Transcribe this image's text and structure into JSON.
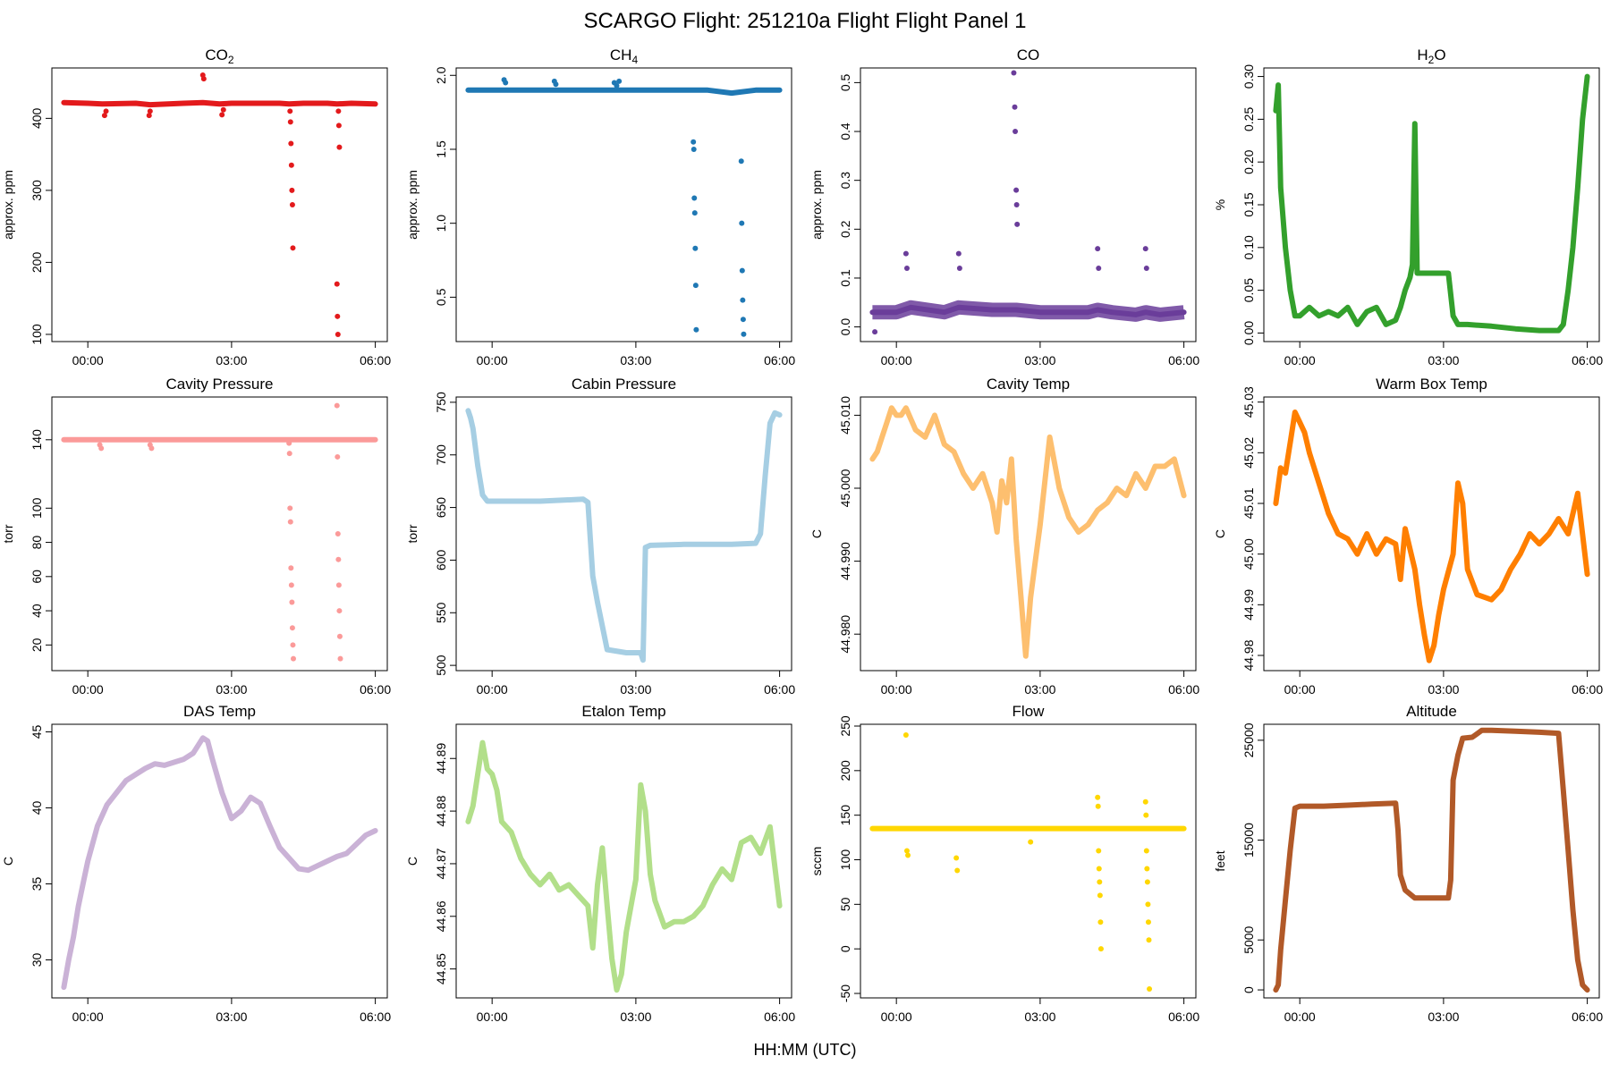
{
  "figure": {
    "title": "SCARGO Flight: 251210a  Flight Flight  Panel 1",
    "xlabel": "HH:MM (UTC)",
    "x_ticks": [
      "00:00",
      "03:00",
      "06:00"
    ],
    "x_tick_values": [
      0,
      3,
      6
    ],
    "xlim": [
      -0.75,
      6.25
    ]
  },
  "chart_data": [
    {
      "type": "scatter",
      "title": "CO2",
      "title_base": "CO",
      "title_sub": "2",
      "ylabel": "approx. ppm",
      "color": "#e31a1c",
      "ylim": [
        90,
        470
      ],
      "yticks": [
        100,
        200,
        300,
        400
      ],
      "ytick_labels": [
        "100",
        "200",
        "300",
        "400"
      ],
      "x": [
        -0.5,
        0.0,
        0.3,
        1.0,
        1.3,
        2.0,
        2.4,
        2.75,
        3.0,
        3.5,
        4.0,
        4.2,
        4.5,
        5.0,
        5.2,
        5.5,
        6.0
      ],
      "y": [
        422,
        421,
        420,
        421,
        419,
        421,
        422,
        420,
        421,
        421,
        421,
        420,
        421,
        421,
        420,
        421,
        420
      ],
      "outliers_x": [
        0.35,
        0.38,
        1.28,
        1.3,
        2.4,
        2.42,
        2.8,
        2.83,
        4.22,
        4.23,
        4.24,
        4.25,
        4.26,
        4.27,
        4.28,
        5.2,
        5.21,
        5.22,
        5.23,
        5.24,
        5.25
      ],
      "outliers_y": [
        404,
        410,
        404,
        410,
        460,
        455,
        405,
        412,
        410,
        395,
        365,
        335,
        300,
        280,
        220,
        170,
        125,
        100,
        410,
        390,
        360
      ]
    },
    {
      "type": "scatter",
      "title": "CH4",
      "title_base": "CH",
      "title_sub": "4",
      "ylabel": "approx. ppm",
      "color": "#1f78b4",
      "ylim": [
        0.2,
        2.05
      ],
      "yticks": [
        0.5,
        1.0,
        1.5,
        2.0
      ],
      "ytick_labels": [
        "0.5",
        "1.0",
        "1.5",
        "2.0"
      ],
      "x": [
        -0.5,
        0.0,
        0.5,
        1.0,
        1.5,
        2.0,
        2.5,
        3.0,
        3.5,
        4.0,
        4.5,
        5.0,
        5.5,
        6.0
      ],
      "y": [
        1.9,
        1.9,
        1.9,
        1.9,
        1.9,
        1.9,
        1.9,
        1.9,
        1.9,
        1.9,
        1.9,
        1.88,
        1.9,
        1.9
      ],
      "outliers_x": [
        0.25,
        0.28,
        1.3,
        1.33,
        2.55,
        2.6,
        2.65,
        4.2,
        4.21,
        4.22,
        4.23,
        4.24,
        4.25,
        4.26,
        5.2,
        5.21,
        5.22,
        5.23,
        5.24,
        5.25
      ],
      "outliers_y": [
        1.97,
        1.95,
        1.96,
        1.94,
        1.95,
        1.93,
        1.96,
        1.55,
        1.5,
        1.17,
        1.07,
        0.83,
        0.58,
        0.28,
        1.42,
        1.0,
        0.68,
        0.48,
        0.35,
        0.25
      ]
    },
    {
      "type": "scatter",
      "title": "CO",
      "title_base": "CO",
      "title_sub": "",
      "ylabel": "approx. ppm",
      "color": "#6a3d9a",
      "ylim": [
        -0.03,
        0.53
      ],
      "yticks": [
        0.0,
        0.1,
        0.2,
        0.3,
        0.4,
        0.5
      ],
      "ytick_labels": [
        "0.0",
        "0.1",
        "0.2",
        "0.3",
        "0.4",
        "0.5"
      ],
      "x": [
        -0.5,
        0.0,
        0.3,
        1.0,
        1.3,
        2.0,
        2.5,
        3.0,
        3.5,
        4.0,
        4.2,
        4.5,
        5.0,
        5.2,
        5.5,
        6.0
      ],
      "y": [
        0.03,
        0.03,
        0.04,
        0.03,
        0.04,
        0.035,
        0.035,
        0.03,
        0.03,
        0.03,
        0.035,
        0.03,
        0.025,
        0.03,
        0.025,
        0.03
      ],
      "outliers_x": [
        0.2,
        0.22,
        1.3,
        1.32,
        2.45,
        2.47,
        2.48,
        2.5,
        2.51,
        2.52,
        4.2,
        4.22,
        5.2,
        5.22,
        -0.45
      ],
      "outliers_y": [
        0.15,
        0.12,
        0.15,
        0.12,
        0.52,
        0.45,
        0.4,
        0.28,
        0.25,
        0.21,
        0.16,
        0.12,
        0.16,
        0.12,
        -0.01
      ]
    },
    {
      "type": "line",
      "title": "H2O",
      "title_base": "H",
      "title_sub": "2",
      "title_tail": "O",
      "ylabel": "%",
      "color": "#33a02c",
      "ylim": [
        -0.01,
        0.31
      ],
      "yticks": [
        0.0,
        0.05,
        0.1,
        0.15,
        0.2,
        0.25,
        0.3
      ],
      "ytick_labels": [
        "0.00",
        "0.05",
        "0.10",
        "0.15",
        "0.20",
        "0.25",
        "0.30"
      ],
      "x": [
        -0.5,
        -0.45,
        -0.4,
        -0.3,
        -0.2,
        -0.1,
        0.0,
        0.2,
        0.4,
        0.6,
        0.8,
        1.0,
        1.2,
        1.4,
        1.6,
        1.8,
        2.0,
        2.1,
        2.2,
        2.3,
        2.35,
        2.4,
        2.45,
        2.6,
        2.8,
        3.0,
        3.1,
        3.2,
        3.3,
        3.5,
        4.0,
        4.5,
        5.0,
        5.4,
        5.5,
        5.6,
        5.7,
        5.8,
        5.9,
        6.0
      ],
      "y": [
        0.26,
        0.29,
        0.17,
        0.1,
        0.05,
        0.02,
        0.02,
        0.03,
        0.02,
        0.025,
        0.02,
        0.03,
        0.01,
        0.025,
        0.03,
        0.01,
        0.015,
        0.03,
        0.05,
        0.065,
        0.08,
        0.245,
        0.07,
        0.07,
        0.07,
        0.07,
        0.07,
        0.02,
        0.01,
        0.01,
        0.008,
        0.005,
        0.003,
        0.003,
        0.01,
        0.05,
        0.1,
        0.17,
        0.25,
        0.3
      ]
    },
    {
      "type": "scatter",
      "title": "Cavity Pressure",
      "ylabel": "torr",
      "color": "#fb9a99",
      "ylim": [
        5,
        165
      ],
      "yticks": [
        20,
        40,
        60,
        80,
        100,
        140
      ],
      "ytick_labels": [
        "20",
        "40",
        "60",
        "80",
        "100",
        "140"
      ],
      "x": [
        -0.5,
        0.0,
        0.3,
        1.0,
        1.3,
        2.0,
        2.5,
        3.0,
        3.5,
        4.0,
        4.5,
        5.0,
        5.5,
        6.0
      ],
      "y": [
        140,
        140,
        140,
        140,
        140,
        140,
        140,
        140,
        140,
        140,
        140,
        140,
        140,
        140
      ],
      "outliers_x": [
        0.25,
        0.28,
        1.3,
        1.33,
        4.2,
        4.21,
        4.22,
        4.23,
        4.24,
        4.25,
        4.26,
        4.27,
        4.28,
        4.29,
        5.2,
        5.21,
        5.22,
        5.23,
        5.24,
        5.25,
        5.26,
        5.27
      ],
      "outliers_y": [
        137,
        135,
        137,
        135,
        138,
        132,
        100,
        92,
        65,
        55,
        45,
        30,
        20,
        12,
        160,
        130,
        85,
        70,
        55,
        40,
        25,
        12
      ]
    },
    {
      "type": "line",
      "title": "Cabin Pressure",
      "ylabel": "torr",
      "color": "#a6cee3",
      "ylim": [
        495,
        755
      ],
      "yticks": [
        500,
        550,
        600,
        650,
        700,
        750
      ],
      "ytick_labels": [
        "500",
        "550",
        "600",
        "650",
        "700",
        "750"
      ],
      "x": [
        -0.5,
        -0.45,
        -0.4,
        -0.3,
        -0.2,
        -0.1,
        0.0,
        0.5,
        1.0,
        1.5,
        1.9,
        2.0,
        2.05,
        2.1,
        2.2,
        2.4,
        2.8,
        3.1,
        3.15,
        3.2,
        3.3,
        4.0,
        4.5,
        5.0,
        5.5,
        5.6,
        5.7,
        5.8,
        5.9,
        6.0
      ],
      "y": [
        742,
        735,
        725,
        690,
        662,
        656,
        656,
        656,
        656,
        657,
        658,
        655,
        620,
        585,
        560,
        515,
        512,
        512,
        505,
        612,
        614,
        615,
        615,
        615,
        616,
        625,
        680,
        730,
        740,
        738
      ]
    },
    {
      "type": "line",
      "title": "Cavity Temp",
      "ylabel": "C",
      "color": "#fdbf6f",
      "ylim": [
        44.975,
        45.0125
      ],
      "yticks": [
        44.98,
        44.99,
        45.0,
        45.01
      ],
      "ytick_labels": [
        "44.980",
        "44.990",
        "45.000",
        "45.010"
      ],
      "x": [
        -0.5,
        -0.4,
        -0.3,
        -0.2,
        -0.1,
        0.0,
        0.1,
        0.2,
        0.4,
        0.6,
        0.8,
        1.0,
        1.2,
        1.4,
        1.6,
        1.8,
        2.0,
        2.1,
        2.2,
        2.3,
        2.4,
        2.5,
        2.6,
        2.7,
        2.8,
        2.9,
        3.0,
        3.2,
        3.4,
        3.6,
        3.8,
        4.0,
        4.2,
        4.4,
        4.6,
        4.8,
        5.0,
        5.2,
        5.4,
        5.6,
        5.8,
        6.0
      ],
      "y": [
        45.004,
        45.005,
        45.007,
        45.009,
        45.011,
        45.01,
        45.01,
        45.011,
        45.008,
        45.007,
        45.01,
        45.006,
        45.005,
        45.002,
        45.0,
        45.002,
        44.998,
        44.994,
        45.001,
        44.998,
        45.004,
        44.993,
        44.985,
        44.977,
        44.985,
        44.99,
        44.995,
        45.007,
        45.0,
        44.996,
        44.994,
        44.995,
        44.997,
        44.998,
        45.0,
        44.999,
        45.002,
        45.0,
        45.003,
        45.003,
        45.004,
        44.999
      ]
    },
    {
      "type": "line",
      "title": "Warm Box Temp",
      "ylabel": "C",
      "color": "#ff7f00",
      "ylim": [
        44.977,
        45.031
      ],
      "yticks": [
        44.98,
        44.99,
        45.0,
        45.01,
        45.02,
        45.03
      ],
      "ytick_labels": [
        "44.98",
        "44.99",
        "45.00",
        "45.01",
        "45.02",
        "45.03"
      ],
      "x": [
        -0.5,
        -0.4,
        -0.3,
        -0.2,
        -0.1,
        0.0,
        0.1,
        0.2,
        0.4,
        0.6,
        0.8,
        1.0,
        1.2,
        1.4,
        1.6,
        1.8,
        2.0,
        2.1,
        2.2,
        2.4,
        2.5,
        2.6,
        2.7,
        2.8,
        2.9,
        3.0,
        3.2,
        3.3,
        3.4,
        3.5,
        3.7,
        4.0,
        4.2,
        4.4,
        4.6,
        4.8,
        5.0,
        5.2,
        5.4,
        5.6,
        5.8,
        6.0
      ],
      "y": [
        45.01,
        45.017,
        45.016,
        45.022,
        45.028,
        45.026,
        45.024,
        45.02,
        45.014,
        45.008,
        45.004,
        45.003,
        45.0,
        45.004,
        45.0,
        45.003,
        45.002,
        44.995,
        45.005,
        44.997,
        44.99,
        44.984,
        44.979,
        44.982,
        44.988,
        44.993,
        45.0,
        45.014,
        45.01,
        44.997,
        44.992,
        44.991,
        44.993,
        44.997,
        45.0,
        45.004,
        45.002,
        45.004,
        45.007,
        45.004,
        45.012,
        44.996
      ]
    },
    {
      "type": "line",
      "title": "DAS Temp",
      "ylabel": "C",
      "color": "#cab2d6",
      "ylim": [
        27.5,
        45.5
      ],
      "yticks": [
        30,
        35,
        40,
        45
      ],
      "ytick_labels": [
        "30",
        "35",
        "40",
        "45"
      ],
      "x": [
        -0.5,
        -0.4,
        -0.3,
        -0.2,
        -0.1,
        0.0,
        0.2,
        0.4,
        0.6,
        0.8,
        1.0,
        1.2,
        1.4,
        1.6,
        1.8,
        2.0,
        2.2,
        2.4,
        2.5,
        2.6,
        2.8,
        3.0,
        3.2,
        3.4,
        3.6,
        3.8,
        4.0,
        4.2,
        4.4,
        4.6,
        4.8,
        5.0,
        5.2,
        5.4,
        5.6,
        5.8,
        6.0
      ],
      "y": [
        28.2,
        30.0,
        31.5,
        33.5,
        35.0,
        36.5,
        38.8,
        40.2,
        41.0,
        41.8,
        42.2,
        42.6,
        42.9,
        42.8,
        43.0,
        43.2,
        43.6,
        44.6,
        44.4,
        43.2,
        41.0,
        39.3,
        39.8,
        40.7,
        40.3,
        38.8,
        37.4,
        36.7,
        36.0,
        35.9,
        36.2,
        36.5,
        36.8,
        37.0,
        37.6,
        38.2,
        38.5
      ]
    },
    {
      "type": "line",
      "title": "Etalon Temp",
      "ylabel": "C",
      "color": "#b2df8a",
      "ylim": [
        44.8445,
        44.8965
      ],
      "yticks": [
        44.85,
        44.86,
        44.87,
        44.88,
        44.89
      ],
      "ytick_labels": [
        "44.85",
        "44.86",
        "44.87",
        "44.88",
        "44.89"
      ],
      "x": [
        -0.5,
        -0.4,
        -0.3,
        -0.2,
        -0.1,
        0.0,
        0.1,
        0.2,
        0.4,
        0.6,
        0.8,
        1.0,
        1.2,
        1.4,
        1.6,
        1.8,
        2.0,
        2.1,
        2.2,
        2.3,
        2.4,
        2.5,
        2.6,
        2.7,
        2.8,
        2.9,
        3.0,
        3.1,
        3.2,
        3.3,
        3.4,
        3.6,
        3.8,
        4.0,
        4.2,
        4.4,
        4.6,
        4.8,
        5.0,
        5.2,
        5.4,
        5.6,
        5.8,
        6.0
      ],
      "y": [
        44.878,
        44.881,
        44.887,
        44.893,
        44.888,
        44.887,
        44.884,
        44.878,
        44.876,
        44.871,
        44.868,
        44.866,
        44.868,
        44.865,
        44.866,
        44.864,
        44.862,
        44.854,
        44.866,
        44.873,
        44.862,
        44.852,
        44.846,
        44.849,
        44.857,
        44.862,
        44.867,
        44.885,
        44.88,
        44.868,
        44.863,
        44.858,
        44.859,
        44.859,
        44.86,
        44.862,
        44.866,
        44.869,
        44.867,
        44.874,
        44.875,
        44.872,
        44.877,
        44.862
      ]
    },
    {
      "type": "scatter",
      "title": "Flow",
      "ylabel": "sccm",
      "color": "#ffd700",
      "ylim": [
        -55,
        252
      ],
      "yticks": [
        -50,
        0,
        50,
        100,
        150,
        200,
        250
      ],
      "ytick_labels": [
        "-50",
        "0",
        "50",
        "100",
        "150",
        "200",
        "250"
      ],
      "x": [
        -0.5,
        0.0,
        0.5,
        1.0,
        1.5,
        2.0,
        2.5,
        3.0,
        3.5,
        4.0,
        4.5,
        5.0,
        5.5,
        6.0
      ],
      "y": [
        135,
        135,
        135,
        135,
        135,
        135,
        135,
        135,
        135,
        135,
        135,
        135,
        135,
        135
      ],
      "outliers_x": [
        0.2,
        0.22,
        0.24,
        1.25,
        1.27,
        2.8,
        4.2,
        4.21,
        4.22,
        4.23,
        4.24,
        4.25,
        4.26,
        4.27,
        5.2,
        5.21,
        5.22,
        5.23,
        5.24,
        5.25,
        5.26,
        5.27,
        5.28
      ],
      "outliers_y": [
        240,
        110,
        105,
        102,
        88,
        120,
        170,
        160,
        110,
        90,
        75,
        60,
        30,
        0,
        165,
        150,
        110,
        90,
        75,
        50,
        30,
        10,
        -45
      ]
    },
    {
      "type": "line",
      "title": "Altitude",
      "ylabel": "feet",
      "color": "#b15928",
      "ylim": [
        -800,
        26600
      ],
      "yticks": [
        0,
        5000,
        15000,
        25000
      ],
      "ytick_labels": [
        "0",
        "5000",
        "15000",
        "25000"
      ],
      "x": [
        -0.5,
        -0.45,
        -0.4,
        -0.3,
        -0.2,
        -0.1,
        0.0,
        0.5,
        1.0,
        1.5,
        2.0,
        2.05,
        2.1,
        2.2,
        2.4,
        2.8,
        3.1,
        3.15,
        3.2,
        3.3,
        3.4,
        3.6,
        3.8,
        4.0,
        4.5,
        5.0,
        5.4,
        5.5,
        5.6,
        5.7,
        5.8,
        5.9,
        6.0
      ],
      "y": [
        0,
        500,
        4000,
        9000,
        14000,
        18200,
        18400,
        18400,
        18500,
        18600,
        18700,
        16000,
        11500,
        10000,
        9200,
        9200,
        9200,
        11000,
        21000,
        23500,
        25200,
        25300,
        26000,
        26000,
        25900,
        25800,
        25700,
        20000,
        14000,
        8000,
        3000,
        500,
        0
      ]
    }
  ]
}
